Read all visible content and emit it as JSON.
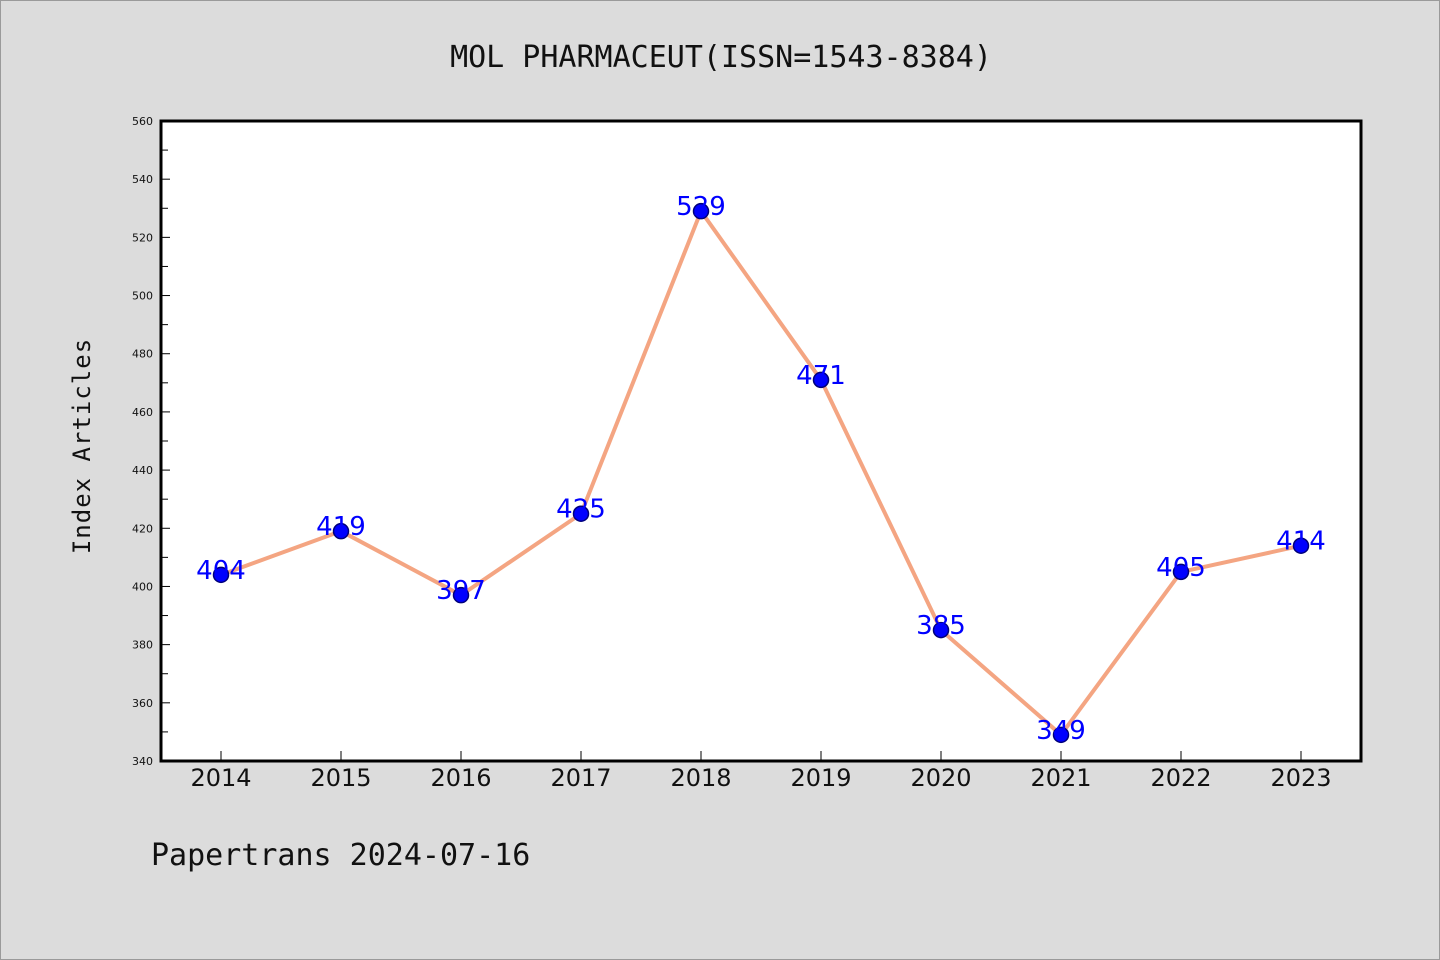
{
  "chart_data": {
    "type": "line",
    "title": "MOL PHARMACEUT(ISSN=1543-8384)",
    "xlabel": "",
    "ylabel": "Index Articles",
    "categories": [
      "2014",
      "2015",
      "2016",
      "2017",
      "2018",
      "2019",
      "2020",
      "2021",
      "2022",
      "2023"
    ],
    "values": [
      404,
      419,
      397,
      425,
      529,
      471,
      385,
      349,
      405,
      414
    ],
    "data_labels": [
      "404",
      "419",
      "397",
      "425",
      "529",
      "471",
      "385",
      "349",
      "405",
      "414"
    ],
    "ylim": [
      340,
      560
    ],
    "yticks": [
      340,
      360,
      380,
      400,
      420,
      440,
      460,
      480,
      500,
      520,
      540,
      560
    ],
    "ytick_labels": [
      "340",
      "360",
      "380",
      "400",
      "420",
      "440",
      "460",
      "480",
      "500",
      "520",
      "540",
      "560"
    ],
    "grid": false,
    "colors": {
      "line": "#f4a582",
      "marker": "#0000ff",
      "marker_edge": "#00007a",
      "data_label": "#0000ff",
      "plot_background": "#ffffff",
      "figure_background": "#dcdcdc"
    }
  },
  "footer": "Papertrans 2024-07-16"
}
